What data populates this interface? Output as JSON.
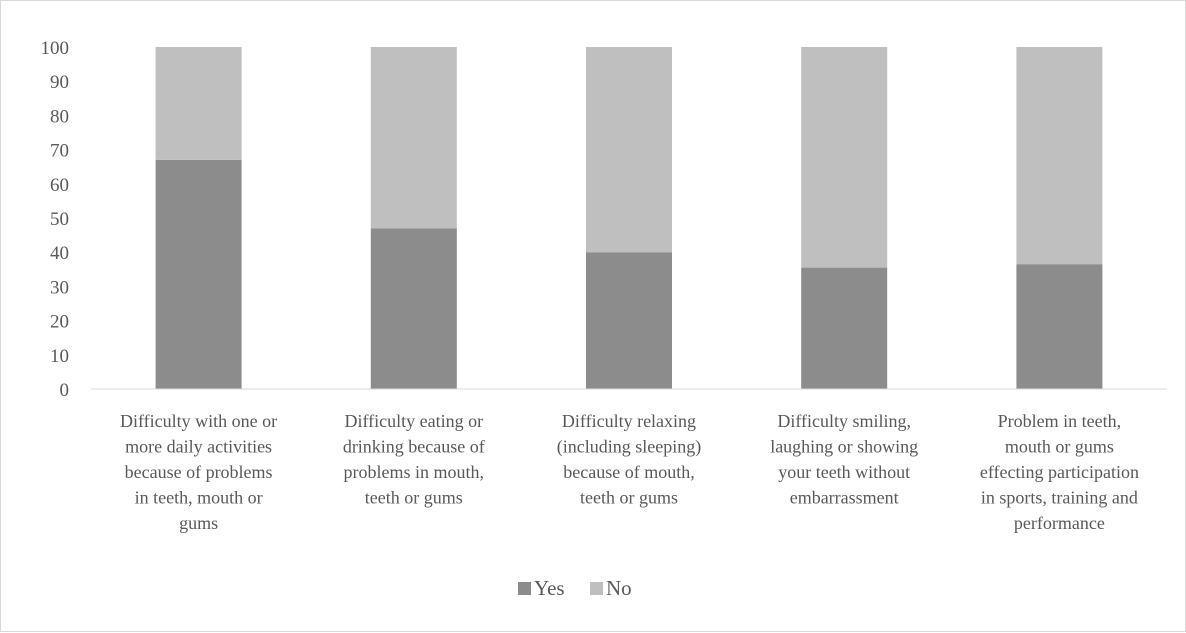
{
  "chart_data": {
    "type": "bar",
    "stacked": true,
    "categories": [
      [
        "Difficulty with one or",
        "more daily activities",
        "because of problems",
        "in teeth, mouth or",
        "gums"
      ],
      [
        "Difficulty eating or",
        "drinking because of",
        "problems in mouth,",
        "teeth or gums"
      ],
      [
        "Difficulty relaxing",
        "(including sleeping)",
        "because of mouth,",
        "teeth or gums"
      ],
      [
        "Difficulty smiling,",
        "laughing or showing",
        "your teeth without",
        "embarrassment"
      ],
      [
        "Problem in  teeth,",
        "mouth or gums",
        "effecting participation",
        "in sports, training and",
        "performance"
      ]
    ],
    "series": [
      {
        "name": "Yes",
        "color": "#8c8c8c",
        "values": [
          67,
          47,
          40,
          35.5,
          36.5
        ]
      },
      {
        "name": "No",
        "color": "#bfbfbf",
        "values": [
          33,
          53,
          60,
          64.5,
          63.5
        ]
      }
    ],
    "ylim": [
      0,
      100
    ],
    "yticks": [
      "0",
      "10",
      "20",
      "30",
      "40",
      "50",
      "60",
      "70",
      "80",
      "90",
      "100"
    ],
    "grid": false,
    "legend_position": "bottom",
    "title": "",
    "xlabel": "",
    "ylabel": ""
  }
}
